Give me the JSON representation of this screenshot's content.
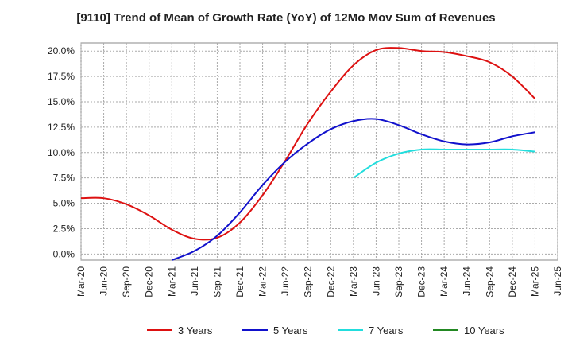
{
  "chart_data": {
    "type": "line",
    "title": "[9110]  Trend of Mean of Growth Rate (YoY) of 12Mo Mov Sum of Revenues",
    "xlabel": "",
    "ylabel": "",
    "ylim": [
      -0.6,
      20.8
    ],
    "yticks": [
      0,
      2.5,
      5,
      7.5,
      10,
      12.5,
      15,
      17.5,
      20
    ],
    "ytick_labels": [
      "0.0%",
      "2.5%",
      "5.0%",
      "7.5%",
      "10.0%",
      "12.5%",
      "15.0%",
      "17.5%",
      "20.0%"
    ],
    "x_ticks": [
      "Mar-20",
      "Jun-20",
      "Sep-20",
      "Dec-20",
      "Mar-21",
      "Jun-21",
      "Sep-21",
      "Dec-21",
      "Mar-22",
      "Jun-22",
      "Sep-22",
      "Dec-22",
      "Mar-23",
      "Jun-23",
      "Sep-23",
      "Dec-23",
      "Mar-24",
      "Jun-24",
      "Sep-24",
      "Dec-24",
      "Mar-25",
      "Jun-25"
    ],
    "grid": true,
    "legend_position": "bottom",
    "series": [
      {
        "name": "3 Years",
        "color": "#dd1111",
        "points": [
          [
            0,
            5.5
          ],
          [
            1,
            5.5
          ],
          [
            2,
            4.9
          ],
          [
            3,
            3.8
          ],
          [
            4,
            2.4
          ],
          [
            5,
            1.5
          ],
          [
            6,
            1.6
          ],
          [
            7,
            3.1
          ],
          [
            8,
            5.8
          ],
          [
            9,
            9.2
          ],
          [
            10,
            12.9
          ],
          [
            11,
            16.0
          ],
          [
            12,
            18.6
          ],
          [
            13,
            20.1
          ],
          [
            14,
            20.3
          ],
          [
            15,
            20.0
          ],
          [
            16,
            19.9
          ],
          [
            17,
            19.5
          ],
          [
            18,
            18.9
          ],
          [
            19,
            17.5
          ],
          [
            20,
            15.3
          ]
        ]
      },
      {
        "name": "5 Years",
        "color": "#1111cc",
        "points": [
          [
            4,
            -0.6
          ],
          [
            5,
            0.3
          ],
          [
            6,
            1.8
          ],
          [
            7,
            4.1
          ],
          [
            8,
            6.8
          ],
          [
            9,
            9.1
          ],
          [
            10,
            10.9
          ],
          [
            11,
            12.3
          ],
          [
            12,
            13.1
          ],
          [
            13,
            13.3
          ],
          [
            14,
            12.7
          ],
          [
            15,
            11.8
          ],
          [
            16,
            11.1
          ],
          [
            17,
            10.8
          ],
          [
            18,
            11.0
          ],
          [
            19,
            11.6
          ],
          [
            20,
            12.0
          ]
        ]
      },
      {
        "name": "7 Years",
        "color": "#22dddd",
        "points": [
          [
            12,
            7.5
          ],
          [
            13,
            9.0
          ],
          [
            14,
            9.9
          ],
          [
            15,
            10.3
          ],
          [
            16,
            10.3
          ],
          [
            17,
            10.3
          ],
          [
            18,
            10.3
          ],
          [
            19,
            10.3
          ],
          [
            20,
            10.1
          ]
        ]
      },
      {
        "name": "10 Years",
        "color": "#228822",
        "points": []
      }
    ]
  }
}
